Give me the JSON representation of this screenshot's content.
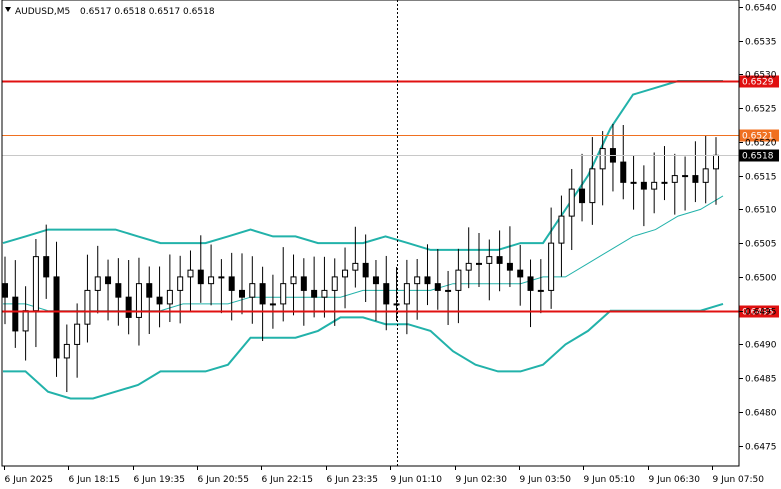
{
  "header": {
    "symbol": "AUDUSD,M5",
    "ohlc": "0.6517 0.6518 0.6517 0.6518"
  },
  "colors": {
    "candle": "#000000",
    "bands": "#22b2aa",
    "red_level": "#e01010",
    "orange_level": "#f07020",
    "current_price_box": "#000000",
    "grid": "#c8c8c8"
  },
  "chart_data": {
    "type": "candlestick",
    "y_range": [
      0.6472,
      0.6541
    ],
    "y_ticks": [
      "0.6540",
      "0.6535",
      "0.6530",
      "0.6525",
      "0.6520",
      "0.6515",
      "0.6510",
      "0.6505",
      "0.6500",
      "0.6495",
      "0.6490",
      "0.6485",
      "0.6480",
      "0.6475"
    ],
    "x_ticks": [
      "6 Jun 2025",
      "6 Jun 18:15",
      "6 Jun 19:35",
      "6 Jun 20:55",
      "6 Jun 22:15",
      "6 Jun 23:35",
      "9 Jun 01:10",
      "9 Jun 02:30",
      "9 Jun 03:50",
      "9 Jun 05:10",
      "9 Jun 06:30",
      "9 Jun 07:50"
    ],
    "levels": [
      {
        "price": 0.6529,
        "label": "0.6529",
        "color": "red"
      },
      {
        "price": 0.6521,
        "label": "0.6521",
        "color": "orange"
      },
      {
        "price": 0.6495,
        "label": "0.6495",
        "color": "red"
      }
    ],
    "current_price": {
      "price": 0.6518,
      "label": "0.6518"
    },
    "session_break_index": 38,
    "bollinger": {
      "upper": [
        0.6505,
        0.6506,
        0.6507,
        0.6507,
        0.6507,
        0.6507,
        0.6506,
        0.6505,
        0.6505,
        0.6505,
        0.6506,
        0.6507,
        0.6506,
        0.6506,
        0.6505,
        0.6505,
        0.6505,
        0.6506,
        0.6505,
        0.6504,
        0.6504,
        0.6504,
        0.6504,
        0.6505,
        0.6505,
        0.651,
        0.6515,
        0.6522,
        0.6527,
        0.6528,
        0.6529,
        0.6529,
        0.6529
      ],
      "middle": [
        0.6496,
        0.6496,
        0.6495,
        0.6495,
        0.6495,
        0.6495,
        0.6495,
        0.6495,
        0.6496,
        0.6496,
        0.6496,
        0.6497,
        0.6497,
        0.6497,
        0.6497,
        0.6497,
        0.6498,
        0.6498,
        0.6498,
        0.6498,
        0.6499,
        0.6499,
        0.6499,
        0.6499,
        0.65,
        0.65,
        0.6502,
        0.6504,
        0.6506,
        0.6507,
        0.6509,
        0.651,
        0.6512
      ],
      "lower": [
        0.6486,
        0.6486,
        0.6483,
        0.6482,
        0.6482,
        0.6483,
        0.6484,
        0.6486,
        0.6486,
        0.6486,
        0.6487,
        0.6491,
        0.6491,
        0.6491,
        0.6492,
        0.6494,
        0.6494,
        0.6493,
        0.6493,
        0.6492,
        0.6489,
        0.6487,
        0.6486,
        0.6486,
        0.6487,
        0.649,
        0.6492,
        0.6495,
        0.6495,
        0.6495,
        0.6495,
        0.6495,
        0.6496
      ]
    },
    "close_path": [
      0.6497,
      0.6492,
      0.6495,
      0.6503,
      0.65,
      0.6488,
      0.649,
      0.6493,
      0.6498,
      0.65,
      0.6499,
      0.6497,
      0.6494,
      0.6499,
      0.6497,
      0.6496,
      0.6498,
      0.65,
      0.6501,
      0.6499,
      0.65,
      0.65,
      0.6498,
      0.6497,
      0.6499,
      0.6496,
      0.6496,
      0.6499,
      0.65,
      0.6498,
      0.6497,
      0.6498,
      0.65,
      0.6501,
      0.6502,
      0.65,
      0.6499,
      0.6496,
      0.6496,
      0.6499,
      0.65,
      0.6499,
      0.6498,
      0.6498,
      0.6501,
      0.6502,
      0.6502,
      0.6503,
      0.6502,
      0.6501,
      0.65,
      0.6498,
      0.6498,
      0.6505,
      0.6509,
      0.6513,
      0.6511,
      0.6516,
      0.6519,
      0.6517,
      0.6514,
      0.6514,
      0.6513,
      0.6514,
      0.6514,
      0.6515,
      0.6515,
      0.6514,
      0.6516,
      0.6518
    ]
  }
}
